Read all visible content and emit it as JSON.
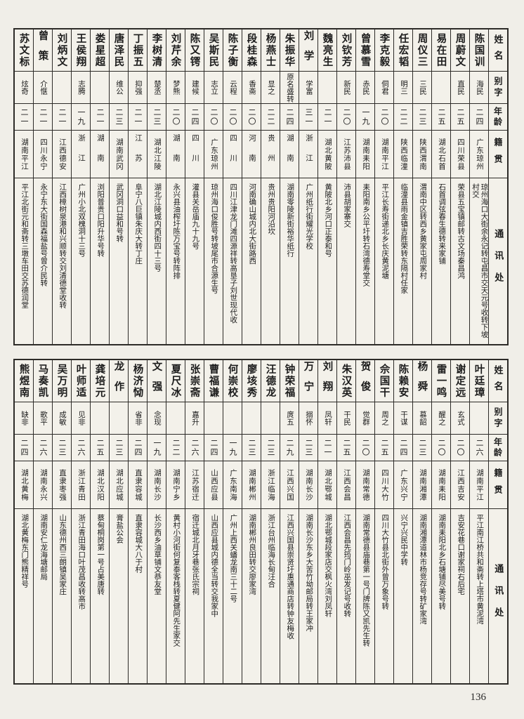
{
  "page": {
    "number": "136"
  },
  "headers": {
    "name": "姓名",
    "alias": "别字",
    "age": "年龄",
    "origin": "籍贯",
    "address": "通讯处"
  },
  "tables": [
    {
      "people": [
        {
          "name": "陈国训",
          "alias": "海民",
          "age": "二四",
          "origin": "广东琼州",
          "address": "琼州海口大街余永记转屯昌市交天元号收转下坡村交"
        },
        {
          "name": "周蔚文",
          "alias": "直民",
          "age": "二五",
          "origin": "四川荣县",
          "address": "荣县五宝镇邮转古文场秦昌鸿"
        },
        {
          "name": "易在田",
          "alias": "",
          "age": "二五",
          "origin": "湖北石首",
          "address": "石首调弦春生德转来家铺"
        },
        {
          "name": "周仪三",
          "alias": "三民",
          "age": "二三",
          "origin": "陕西渭南",
          "address": "渭南中区转西乡黄家屯周家村"
        },
        {
          "name": "任宏韬",
          "alias": "明三",
          "age": "二二",
          "origin": "陕西临潼",
          "address": "临潼县雨金镇吉胜荣转东隔村任家"
        },
        {
          "name": "李克毅",
          "alias": "侗君",
          "age": "二〇",
          "origin": "湖南平江",
          "address": "平江长寿街递北乡长庆黄泥塘"
        },
        {
          "name": "曾慕雪",
          "alias": "赤民",
          "age": "一九",
          "origin": "湖南耒阳",
          "address": "耒阳南乡公平圩转石湾德寿堂交"
        },
        {
          "name": "刘钦芳",
          "alias": "新民",
          "age": "二〇",
          "origin": "江苏沛县",
          "address": "沛县胡家寨交"
        },
        {
          "name": "魏亮生",
          "alias": "",
          "age": "二一",
          "origin": "湖北黄陂",
          "address": "黄陂北乡河口正泰和号"
        },
        {
          "name": "刘学",
          "alias": "学富",
          "age": "三一",
          "origin": "浙江",
          "address": "广州纸行街耀光学校"
        },
        {
          "name": "朱振华",
          "alias": "原名盛转",
          "age": "二四",
          "origin": "湖南",
          "address": "湖南零陵新街裕华纸行"
        },
        {
          "name": "杨燕士",
          "alias": "显之",
          "age": "二二",
          "origin": "贵州",
          "address": "贵州贵阳河沿坎"
        },
        {
          "name": "段桂森",
          "alias": "香斋",
          "age": "二〇",
          "origin": "河南",
          "address": "河南确山城内北大街路西"
        },
        {
          "name": "陈子衡",
          "alias": "云程",
          "age": "二〇",
          "origin": "四川",
          "address": "四川江津龙门滩四源祥转高垦子刘世现代收"
        },
        {
          "name": "吴斯民",
          "alias": "志立",
          "age": "二〇",
          "origin": "广东琼州",
          "address": "琼州海口俊胜号转坡尾市合源生号"
        },
        {
          "name": "陈又锷",
          "alias": "建候",
          "age": "二四",
          "origin": "四川",
          "address": "灌县关岳庙九十九号"
        },
        {
          "name": "刘芹余",
          "alias": "梦熊",
          "age": "二〇",
          "origin": "湖南",
          "address": "永兴县油榨圩陈万宝号转阵排"
        },
        {
          "name": "李树清",
          "alias": "楚丞",
          "age": "二三",
          "origin": "湖北江陵",
          "address": "湖北江陵城内西街四十三号"
        },
        {
          "name": "丁振五",
          "alias": "抑强",
          "age": "二一",
          "origin": "江苏",
          "address": "阜宁八巨镇朱庆大转丁庄"
        },
        {
          "name": "唐泽民",
          "alias": "维公",
          "age": "二三",
          "origin": "湖南武冈",
          "address": "武冈洞口益和号转"
        },
        {
          "name": "娄星超",
          "alias": "",
          "age": "二一",
          "origin": "湖南",
          "address": "浏阳普贵口阳升华号转"
        },
        {
          "name": "王侯翔",
          "alias": "志腾",
          "age": "一九",
          "origin": "浙江",
          "address": "广州小北双槐洞十三号"
        },
        {
          "name": "刘炳文",
          "alias": "",
          "age": "二一",
          "origin": "江西德安",
          "address": "江西樟树泉港和兴顺转交刘清德堂收转"
        },
        {
          "name": "曾策",
          "alias": "介惬",
          "age": "二一",
          "origin": "四川永宁",
          "address": "永宁东大街国森福盐号曾介民转"
        },
        {
          "name": "苏文标",
          "alias": "炫奇",
          "age": "二一",
          "origin": "湖南平江",
          "address": "平江北街元和斋转三墩车田交苏德润堂"
        }
      ]
    },
    {
      "people": [
        {
          "name": "叶廷璋",
          "alias": "",
          "age": "二六",
          "origin": "湖南平江",
          "address": "平江南江桥共和斋转上塔市黄泥湾"
        },
        {
          "name": "谢定远",
          "alias": "玄式",
          "age": "二〇",
          "origin": "江西吉安",
          "address": "吉安花巷口谢家祠右后宅"
        },
        {
          "name": "雷一鸣",
          "alias": "醒之",
          "age": "二〇",
          "origin": "湖南耒阳",
          "address": "湖南耒阳北乡石塘铺尽美号转"
        },
        {
          "name": "杨舜",
          "alias": "慕韶",
          "age": "二三",
          "origin": "湖南湘潭",
          "address": "湖南湘潭道林市杨竞存号转矿家湾"
        },
        {
          "name": "陈赖安",
          "alias": "干谋",
          "age": "二四",
          "origin": "广东兴宁",
          "address": "兴宁兴民中学转"
        },
        {
          "name": "佘国干",
          "alias": "周之",
          "age": "二五",
          "origin": "四川大竹",
          "address": "四川大竹县北街外曾万象号转"
        },
        {
          "name": "贺俊",
          "alias": "觉群",
          "age": "二〇",
          "origin": "湖南常德",
          "address": "湖南常德县庙巷第一号门牌陈又凯先生转"
        },
        {
          "name": "朱汉英",
          "alias": "干民",
          "age": "二五",
          "origin": "江西会昌",
          "address": "江西会昌先筠门岭巫发记号收转"
        },
        {
          "name": "刘翔",
          "alias": "凤轩",
          "age": "二一",
          "origin": "湖北鄂城",
          "address": "湖北鄂城段家店交枫火湾刘凤轩"
        },
        {
          "name": "万宁",
          "alias": "搦怀",
          "age": "二三",
          "origin": "湖南长沙",
          "address": "湖南长沙东乡大苦竹坳邮局转王家冲"
        },
        {
          "name": "钟荣福",
          "alias": "庹五",
          "age": "二九",
          "origin": "江西兴国",
          "address": "江西兴国县崇贤圩惠通商店转钟友梅收"
        },
        {
          "name": "汪德龙",
          "alias": "",
          "age": "二三",
          "origin": "浙江临海",
          "address": "浙江台州临海长甸汪合"
        },
        {
          "name": "廖垓秀",
          "alias": "",
          "age": "二三",
          "origin": "湖南郴州",
          "address": "湖南郴州良田转交廖家湾"
        },
        {
          "name": "何崇校",
          "alias": "",
          "age": "一九",
          "origin": "广东南海",
          "address": "广州上西关蟠龙南三十二号"
        },
        {
          "name": "曹福谦",
          "alias": "",
          "age": "二四",
          "origin": "山西应县",
          "address": "山西应县城内德全当转交我家中"
        },
        {
          "name": "张崇斋",
          "alias": "嘉升",
          "age": "二六",
          "origin": "江苏宿迁",
          "address": "宿迁城北月牙巷张氏宗祠"
        },
        {
          "name": "夏尺冰",
          "alias": "",
          "age": "二二",
          "origin": "湖南宁乡",
          "address": "黄村小河街何复泰客栈转夏健阿先生家交"
        },
        {
          "name": "文强",
          "alias": "念现",
          "age": "一九",
          "origin": "湖南长沙",
          "address": "长沙西乡油草铺文恭友堂"
        },
        {
          "name": "杨济恸",
          "alias": "省非",
          "age": "二四",
          "origin": "直隶容城",
          "address": "直隶容城大八于村"
        },
        {
          "name": "龙作",
          "alias": "",
          "age": "二三",
          "origin": "湖北应城",
          "address": "膏盐公会"
        },
        {
          "name": "龚培元",
          "alias": "",
          "age": "二五",
          "origin": "湖北汉阳",
          "address": "蔡甸桐岗第一号占美唐转"
        },
        {
          "name": "叶师适",
          "alias": "见非",
          "age": "二六",
          "origin": "浙江青田",
          "address": "浙江青田海口叶茂昌收转高市"
        },
        {
          "name": "吴万明",
          "alias": "成敏",
          "age": "二三",
          "origin": "直隶枣强",
          "address": "山东德州西三朗镇吴家庄"
        },
        {
          "name": "马奏凯",
          "alias": "歌平",
          "age": "二六",
          "origin": "湖南永兴",
          "address": "湖南安仁龙海塘邮局"
        },
        {
          "name": "熊煜南",
          "alias": "缺非",
          "age": "二四",
          "origin": "湖北黄梅",
          "address": "湖北黄梅东门熊精祥号"
        }
      ]
    }
  ]
}
